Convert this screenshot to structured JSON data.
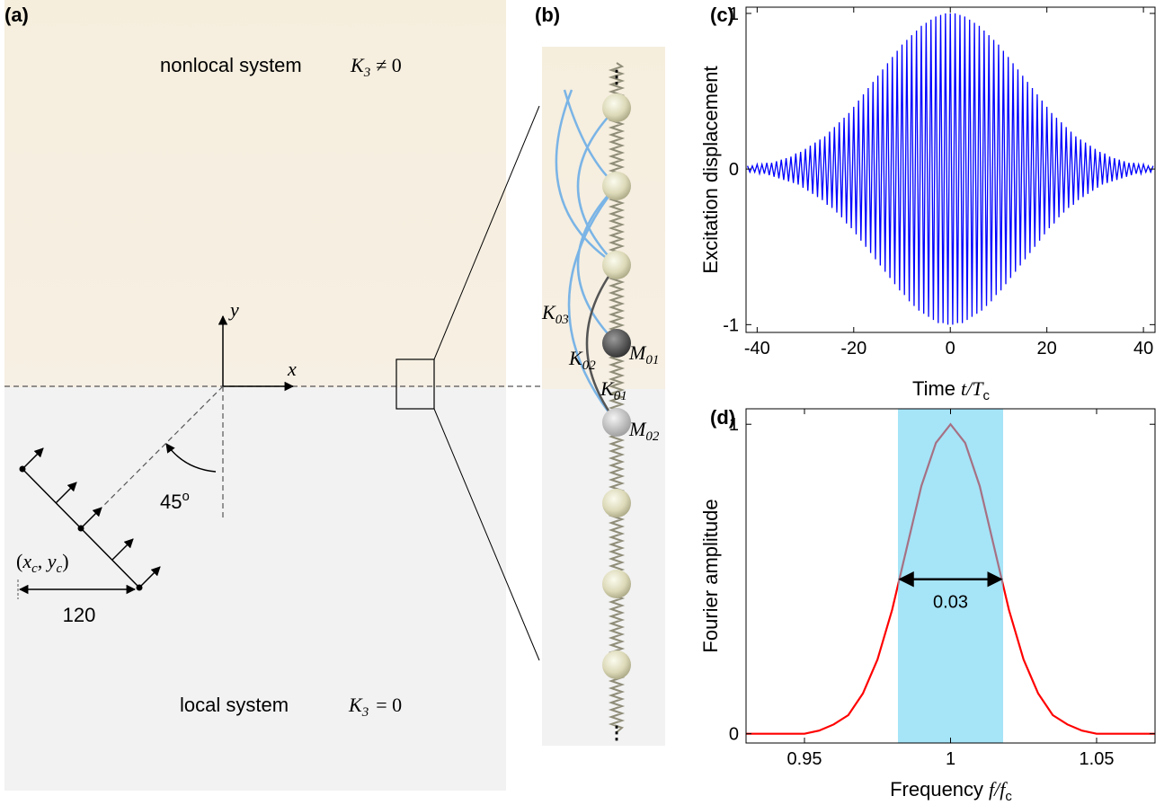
{
  "panel_a": {
    "label": "(a)",
    "top_text": "nonlocal system",
    "top_symbol": "K",
    "top_subscript": "3",
    "top_relation": "≠ 0",
    "bottom_text": "local system",
    "bottom_symbol": "K",
    "bottom_subscript": "3",
    "bottom_relation": "= 0",
    "axis_y": "y",
    "axis_x": "x",
    "angle": 45,
    "angle_unit": "o",
    "source_label": [
      "(",
      "x",
      "c",
      ", ",
      "y",
      "c",
      ")"
    ],
    "distance": 120
  },
  "panel_b": {
    "label": "(b)",
    "dots_top": "⋮",
    "dots_bottom": "⋮",
    "springs": [
      {
        "symbol": "K",
        "subscript": "03"
      },
      {
        "symbol": "K",
        "subscript": "02"
      },
      {
        "symbol": "K",
        "subscript": "01"
      }
    ],
    "masses": [
      {
        "symbol": "M",
        "subscript": "01"
      },
      {
        "symbol": "M",
        "subscript": "02"
      }
    ]
  },
  "chart_data": [
    {
      "type": "line",
      "panel_label": "(c)",
      "xlabel": "Time",
      "xlabel_symbol": "t/T",
      "xlabel_subscript": "c",
      "ylabel": "Excitation displacement",
      "color": "#0000ff",
      "x": [
        -42,
        -41.5,
        -41,
        -40.5,
        -40,
        -39.5,
        -39,
        -38.5,
        -38,
        -37.5,
        -37,
        -36.5,
        -36,
        -35.5,
        -35,
        -34.5,
        -34,
        -33.5,
        -33,
        -32.5,
        -32,
        -31.5,
        -31,
        -30.5,
        -30,
        -29.5,
        -29,
        -28.5,
        -28,
        -27.5,
        -27,
        -26.5,
        -26,
        -25.5,
        -25,
        -24.5,
        -24,
        -23.5,
        -23,
        -22.5,
        -22,
        -21.5,
        -21,
        -20.5,
        -20,
        -19.5,
        -19,
        -18.5,
        -18,
        -17.5,
        -17,
        -16.5,
        -16,
        -15.5,
        -15,
        -14.5,
        -14,
        -13.5,
        -13,
        -12.5,
        -12,
        -11.5,
        -11,
        -10.5,
        -10,
        -9.5,
        -9,
        -8.5,
        -8,
        -7.5,
        -7,
        -6.5,
        -6,
        -5.5,
        -5,
        -4.5,
        -4,
        -3.5,
        -3,
        -2.5,
        -2,
        -1.5,
        -1,
        -0.5,
        0,
        0.5,
        1,
        1.5,
        2,
        2.5,
        3,
        3.5,
        4,
        4.5,
        5,
        5.5,
        6,
        6.5,
        7,
        7.5,
        8,
        8.5,
        9,
        9.5,
        10,
        10.5,
        11,
        11.5,
        12,
        12.5,
        13,
        13.5,
        14,
        14.5,
        15,
        15.5,
        16,
        16.5,
        17,
        17.5,
        18,
        18.5,
        19,
        19.5,
        20,
        20.5,
        21,
        21.5,
        22,
        22.5,
        23,
        23.5,
        24,
        24.5,
        25,
        25.5,
        26,
        26.5,
        27,
        27.5,
        28,
        28.5,
        29,
        29.5,
        30,
        30.5,
        31,
        31.5,
        32,
        32.5,
        33,
        33.5,
        34,
        34.5,
        35,
        35.5,
        36,
        36.5,
        37,
        37.5,
        38,
        38.5,
        39,
        39.5,
        40,
        40.5,
        41,
        41.5,
        42
      ],
      "values": [
        0.02,
        -0.02,
        0.02,
        -0.02,
        0.03,
        -0.03,
        0.03,
        -0.03,
        0.04,
        -0.04,
        0.04,
        -0.05,
        0.05,
        -0.06,
        0.06,
        -0.07,
        0.07,
        -0.08,
        0.08,
        -0.09,
        0.1,
        -0.1,
        0.11,
        -0.12,
        0.13,
        -0.14,
        0.15,
        -0.16,
        0.17,
        -0.18,
        0.19,
        -0.2,
        0.21,
        -0.23,
        0.24,
        -0.25,
        0.27,
        -0.28,
        0.3,
        -0.31,
        0.33,
        -0.35,
        0.36,
        -0.38,
        0.4,
        -0.42,
        0.44,
        -0.46,
        0.48,
        -0.5,
        0.52,
        -0.54,
        0.56,
        -0.58,
        0.6,
        -0.62,
        0.64,
        -0.66,
        0.68,
        -0.7,
        0.72,
        -0.74,
        0.76,
        -0.78,
        0.8,
        -0.81,
        0.83,
        -0.85,
        0.86,
        -0.88,
        0.89,
        -0.91,
        0.92,
        -0.93,
        0.94,
        -0.95,
        0.96,
        -0.97,
        0.98,
        -0.99,
        0.99,
        -0.99,
        1,
        -1,
        1,
        -1,
        1,
        -0.99,
        0.99,
        -0.99,
        0.98,
        -0.97,
        0.96,
        -0.95,
        0.94,
        -0.93,
        0.92,
        -0.91,
        0.89,
        -0.88,
        0.86,
        -0.85,
        0.83,
        -0.81,
        0.8,
        -0.78,
        0.76,
        -0.74,
        0.72,
        -0.7,
        0.68,
        -0.66,
        0.64,
        -0.62,
        0.6,
        -0.58,
        0.56,
        -0.54,
        0.52,
        -0.5,
        0.48,
        -0.46,
        0.44,
        -0.42,
        0.4,
        -0.38,
        0.36,
        -0.35,
        0.33,
        -0.31,
        0.3,
        -0.28,
        0.27,
        -0.25,
        0.24,
        -0.23,
        0.21,
        -0.2,
        0.19,
        -0.18,
        0.17,
        -0.16,
        0.15,
        -0.14,
        0.13,
        -0.12,
        0.11,
        -0.1,
        0.1,
        -0.09,
        0.08,
        -0.08,
        0.07,
        -0.07,
        0.06,
        -0.06,
        0.05,
        -0.05,
        0.04,
        -0.04,
        0.04,
        -0.03,
        0.03,
        -0.03,
        0.03,
        -0.02,
        0.02,
        -0.02,
        0.02
      ],
      "xlim": [
        -42.3,
        42.4
      ],
      "ylim": [
        -1.05,
        1.04
      ],
      "xticks": [
        -40,
        -20,
        0,
        20,
        40
      ],
      "yticks": [
        -1,
        0,
        1
      ]
    },
    {
      "type": "line",
      "panel_label": "(d)",
      "xlabel": "Frequency",
      "xlabel_symbol": "f/f",
      "xlabel_subscript": "c",
      "ylabel": "Fourier amplitude",
      "color": "#ff0000",
      "band": [
        0.982,
        1.018
      ],
      "band_color": "#5ccdf0",
      "annotation": 0.03,
      "x": [
        0.93,
        0.935,
        0.94,
        0.945,
        0.95,
        0.955,
        0.96,
        0.965,
        0.97,
        0.975,
        0.98,
        0.985,
        0.99,
        0.995,
        1,
        1.005,
        1.01,
        1.015,
        1.02,
        1.025,
        1.03,
        1.035,
        1.04,
        1.045,
        1.05,
        1.055,
        1.06,
        1.065,
        1.07
      ],
      "values": [
        0,
        0,
        0,
        0,
        0,
        0.01,
        0.03,
        0.06,
        0.13,
        0.24,
        0.4,
        0.6,
        0.8,
        0.94,
        1,
        0.94,
        0.8,
        0.6,
        0.4,
        0.24,
        0.13,
        0.06,
        0.03,
        0.01,
        0,
        0,
        0,
        0,
        0
      ],
      "xlim": [
        0.93,
        1.07
      ],
      "ylim": [
        -0.03,
        1.05
      ],
      "xticks": [
        0.95,
        1,
        1.05
      ],
      "yticks": [
        0,
        1
      ]
    }
  ]
}
